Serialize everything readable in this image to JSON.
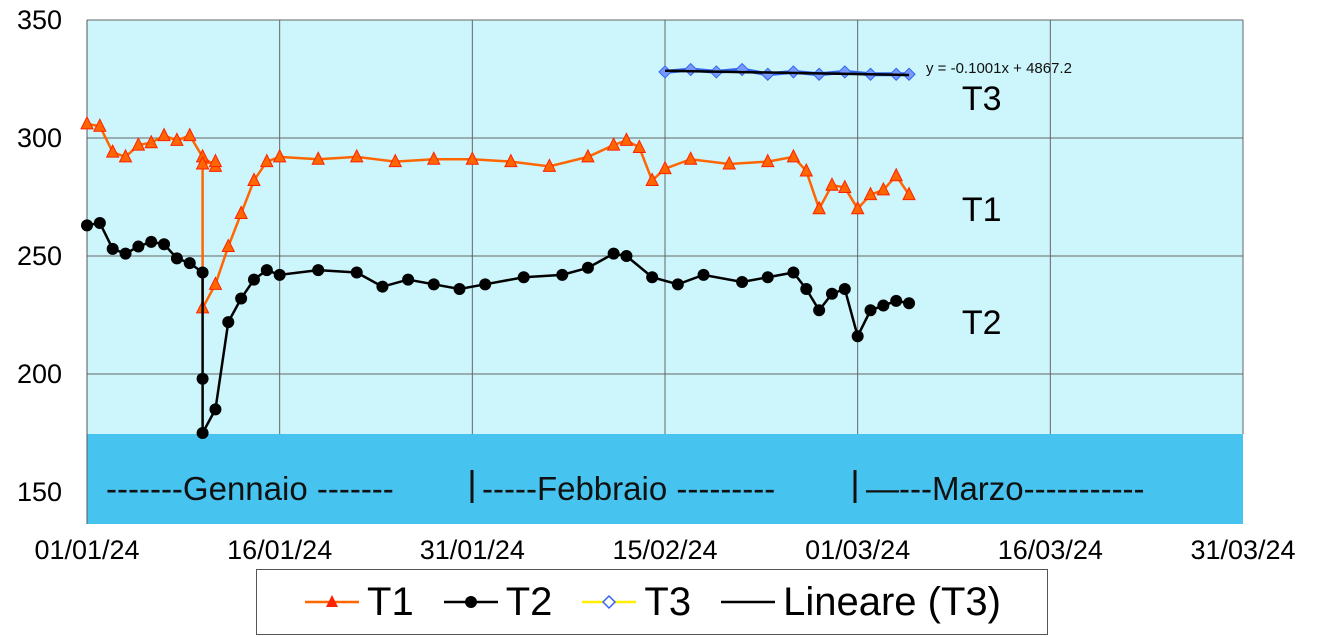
{
  "chart_data": {
    "type": "line",
    "xlabel": "",
    "ylabel": "",
    "x_ticks": [
      "01/01/24",
      "16/01/24",
      "31/01/24",
      "15/02/24",
      "01/03/24",
      "16/03/24",
      "31/03/24"
    ],
    "xlim": [
      "01/01/24",
      "31/03/24"
    ],
    "ylim": [
      150,
      350
    ],
    "y_ticks": [
      150,
      200,
      250,
      300,
      350
    ],
    "grid": true,
    "legend_position": "bottom",
    "plot_background": "#ccf5fc",
    "band_color": "#46c3ef",
    "month_labels": [
      "-------Gennaio -------",
      "-----Febbraio ---------",
      "—---Marzo-----------"
    ],
    "trend_equation": "y = -0.1001x + 4867.2",
    "series": [
      {
        "name": "T1",
        "color": "#ff6600",
        "marker_color": "#ff2200",
        "marker": "triangle",
        "points": [
          [
            "01/01/24",
            306
          ],
          [
            "02/01/24",
            305
          ],
          [
            "03/01/24",
            294
          ],
          [
            "04/01/24",
            292
          ],
          [
            "05/01/24",
            297
          ],
          [
            "06/01/24",
            298
          ],
          [
            "07/01/24",
            301
          ],
          [
            "08/01/24",
            299
          ],
          [
            "09/01/24",
            301
          ],
          [
            "10/01/24",
            292
          ],
          [
            "11/01/24",
            288
          ],
          [
            "11/01/24",
            290
          ],
          [
            "10/01/24",
            289
          ],
          [
            "10/01/24",
            228
          ],
          [
            "11/01/24",
            238
          ],
          [
            "12/01/24",
            254
          ],
          [
            "13/01/24",
            268
          ],
          [
            "14/01/24",
            282
          ],
          [
            "15/01/24",
            290
          ],
          [
            "16/01/24",
            292
          ],
          [
            "19/01/24",
            291
          ],
          [
            "22/01/24",
            292
          ],
          [
            "25/01/24",
            290
          ],
          [
            "28/01/24",
            291
          ],
          [
            "31/01/24",
            291
          ],
          [
            "03/02/24",
            290
          ],
          [
            "06/02/24",
            288
          ],
          [
            "09/02/24",
            292
          ],
          [
            "11/02/24",
            297
          ],
          [
            "12/02/24",
            299
          ],
          [
            "13/02/24",
            296
          ],
          [
            "14/02/24",
            282
          ],
          [
            "15/02/24",
            287
          ],
          [
            "17/02/24",
            291
          ],
          [
            "20/02/24",
            289
          ],
          [
            "23/02/24",
            290
          ],
          [
            "25/02/24",
            292
          ],
          [
            "26/02/24",
            286
          ],
          [
            "27/02/24",
            270
          ],
          [
            "28/02/24",
            280
          ],
          [
            "29/02/24",
            279
          ],
          [
            "01/03/24",
            270
          ],
          [
            "02/03/24",
            276
          ],
          [
            "03/03/24",
            278
          ],
          [
            "04/03/24",
            284
          ],
          [
            "05/03/24",
            276
          ]
        ]
      },
      {
        "name": "T2",
        "color": "#000000",
        "marker_color": "#000000",
        "marker": "circle",
        "points": [
          [
            "01/01/24",
            263
          ],
          [
            "02/01/24",
            264
          ],
          [
            "03/01/24",
            253
          ],
          [
            "04/01/24",
            251
          ],
          [
            "05/01/24",
            254
          ],
          [
            "06/01/24",
            256
          ],
          [
            "07/01/24",
            255
          ],
          [
            "08/01/24",
            249
          ],
          [
            "09/01/24",
            247
          ],
          [
            "10/01/24",
            243
          ],
          [
            "10/01/24",
            198
          ],
          [
            "10/01/24",
            175
          ],
          [
            "11/01/24",
            185
          ],
          [
            "12/01/24",
            222
          ],
          [
            "13/01/24",
            232
          ],
          [
            "14/01/24",
            240
          ],
          [
            "15/01/24",
            244
          ],
          [
            "16/01/24",
            242
          ],
          [
            "19/01/24",
            244
          ],
          [
            "22/01/24",
            243
          ],
          [
            "24/01/24",
            237
          ],
          [
            "26/01/24",
            240
          ],
          [
            "28/01/24",
            238
          ],
          [
            "30/01/24",
            236
          ],
          [
            "01/02/24",
            238
          ],
          [
            "04/02/24",
            241
          ],
          [
            "07/02/24",
            242
          ],
          [
            "09/02/24",
            245
          ],
          [
            "11/02/24",
            251
          ],
          [
            "12/02/24",
            250
          ],
          [
            "14/02/24",
            241
          ],
          [
            "16/02/24",
            238
          ],
          [
            "18/02/24",
            242
          ],
          [
            "21/02/24",
            239
          ],
          [
            "23/02/24",
            241
          ],
          [
            "25/02/24",
            243
          ],
          [
            "26/02/24",
            236
          ],
          [
            "27/02/24",
            227
          ],
          [
            "28/02/24",
            234
          ],
          [
            "29/02/24",
            236
          ],
          [
            "01/03/24",
            216
          ],
          [
            "02/03/24",
            227
          ],
          [
            "03/03/24",
            229
          ],
          [
            "04/03/24",
            231
          ],
          [
            "05/03/24",
            230
          ]
        ]
      },
      {
        "name": "T3",
        "color": "#ffee00",
        "marker_color": "#3366ee",
        "marker": "diamond",
        "points": [
          [
            "15/02/24",
            328
          ],
          [
            "17/02/24",
            329
          ],
          [
            "19/02/24",
            328
          ],
          [
            "21/02/24",
            329
          ],
          [
            "23/02/24",
            327
          ],
          [
            "25/02/24",
            328
          ],
          [
            "27/02/24",
            327
          ],
          [
            "29/02/24",
            328
          ],
          [
            "02/03/24",
            327
          ],
          [
            "04/03/24",
            327
          ],
          [
            "05/03/24",
            327
          ]
        ]
      },
      {
        "name": "Lineare (T3)",
        "color": "#000000",
        "marker": "none",
        "points": [
          [
            "15/02/24",
            328.5
          ],
          [
            "05/03/24",
            326.7
          ]
        ]
      }
    ],
    "annotations": [
      {
        "text": "T3",
        "x": "06/03/24",
        "y": 317
      },
      {
        "text": "T1",
        "x": "06/03/24",
        "y": 270
      },
      {
        "text": "T2",
        "x": "06/03/24",
        "y": 222
      }
    ]
  },
  "legend": {
    "items": [
      {
        "label": "T1",
        "series": 0
      },
      {
        "label": "T2",
        "series": 1
      },
      {
        "label": "T3",
        "series": 2
      },
      {
        "label": "Lineare (T3)",
        "series": 3
      }
    ]
  }
}
